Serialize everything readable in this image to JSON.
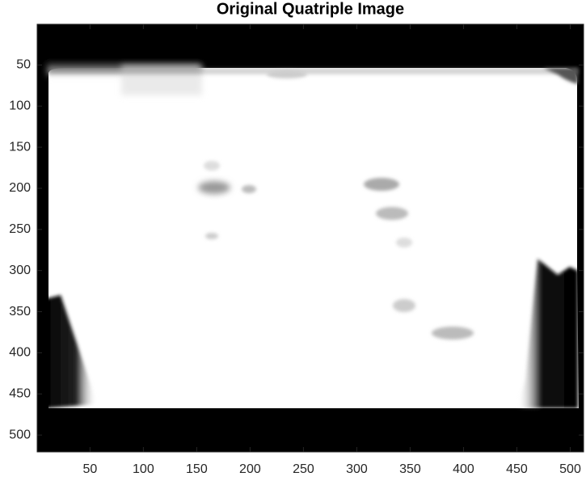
{
  "chart_data": {
    "type": "image",
    "title": "Original Quatriple Image",
    "xlim": [
      0.5,
      512.5
    ],
    "ylim": [
      0.5,
      520.5
    ],
    "xticks": [
      50,
      100,
      150,
      200,
      250,
      300,
      350,
      400,
      450,
      500
    ],
    "yticks": [
      50,
      100,
      150,
      200,
      250,
      300,
      350,
      400,
      450,
      500
    ],
    "yreversed": true
  }
}
